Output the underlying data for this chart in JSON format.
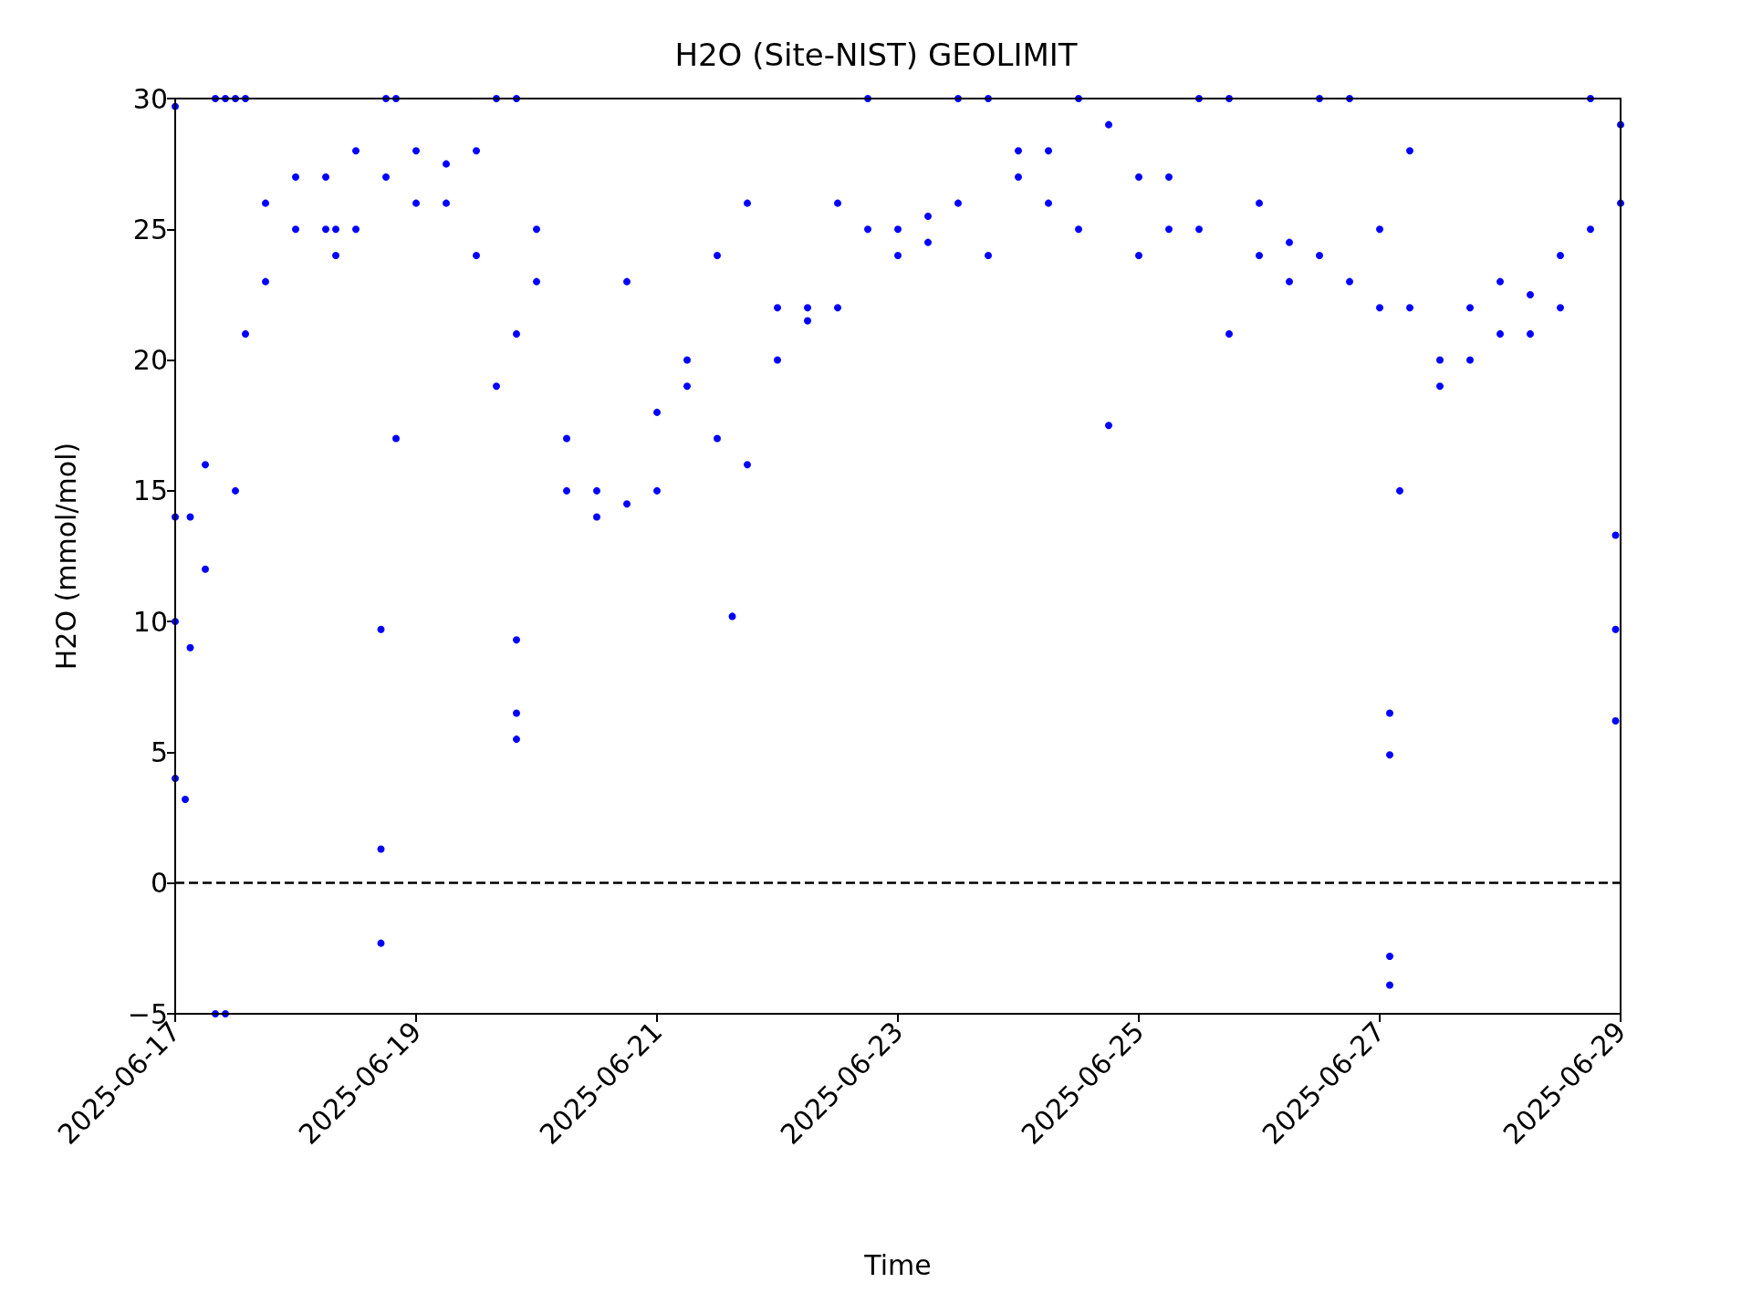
{
  "chart_data": {
    "type": "scatter",
    "title": "H2O (Site-NIST) GEOLIMIT",
    "xlabel": "Time",
    "ylabel": "H2O (mmol/mol)",
    "xlim": [
      "2025-06-17",
      "2025-06-29"
    ],
    "xticks": [
      "2025-06-17",
      "2025-06-19",
      "2025-06-21",
      "2025-06-23",
      "2025-06-25",
      "2025-06-27",
      "2025-06-29"
    ],
    "ylim": [
      -5,
      30
    ],
    "yticks": [
      {
        "value": -5,
        "label": "−5"
      },
      0,
      5,
      10,
      15,
      20,
      25,
      30
    ],
    "grid": false,
    "marker": "circle",
    "ref_lines": [
      {
        "axis": "y",
        "value": 0,
        "color": "#000000",
        "line_style": "dashed"
      }
    ],
    "series": [
      {
        "color": "#0000ff",
        "x": [
          "2025-06-17T00:00",
          "2025-06-17T00:00",
          "2025-06-17T00:00",
          "2025-06-17T00:00",
          "2025-06-17T02:00",
          "2025-06-17T03:00",
          "2025-06-17T03:00",
          "2025-06-17T06:00",
          "2025-06-17T06:00",
          "2025-06-17T08:00",
          "2025-06-17T08:00",
          "2025-06-17T10:00",
          "2025-06-17T10:00",
          "2025-06-17T12:00",
          "2025-06-17T12:00",
          "2025-06-17T14:00",
          "2025-06-17T14:00",
          "2025-06-17T18:00",
          "2025-06-17T18:00",
          "2025-06-18T00:00",
          "2025-06-18T00:00",
          "2025-06-18T06:00",
          "2025-06-18T06:00",
          "2025-06-18T08:00",
          "2025-06-18T08:00",
          "2025-06-18T12:00",
          "2025-06-18T12:00",
          "2025-06-18T17:00",
          "2025-06-18T17:00",
          "2025-06-18T17:00",
          "2025-06-18T18:00",
          "2025-06-18T18:00",
          "2025-06-18T20:00",
          "2025-06-18T20:00",
          "2025-06-19T00:00",
          "2025-06-19T00:00",
          "2025-06-19T06:00",
          "2025-06-19T06:00",
          "2025-06-19T12:00",
          "2025-06-19T12:00",
          "2025-06-19T16:00",
          "2025-06-19T16:00",
          "2025-06-19T20:00",
          "2025-06-19T20:00",
          "2025-06-19T20:00",
          "2025-06-19T20:00",
          "2025-06-19T20:00",
          "2025-06-20T00:00",
          "2025-06-20T00:00",
          "2025-06-20T06:00",
          "2025-06-20T06:00",
          "2025-06-20T12:00",
          "2025-06-20T12:00",
          "2025-06-20T18:00",
          "2025-06-20T18:00",
          "2025-06-21T00:00",
          "2025-06-21T00:00",
          "2025-06-21T06:00",
          "2025-06-21T06:00",
          "2025-06-21T12:00",
          "2025-06-21T12:00",
          "2025-06-21T15:00",
          "2025-06-21T18:00",
          "2025-06-21T18:00",
          "2025-06-22T00:00",
          "2025-06-22T00:00",
          "2025-06-22T06:00",
          "2025-06-22T06:00",
          "2025-06-22T12:00",
          "2025-06-22T12:00",
          "2025-06-22T18:00",
          "2025-06-22T18:00",
          "2025-06-23T00:00",
          "2025-06-23T00:00",
          "2025-06-23T06:00",
          "2025-06-23T06:00",
          "2025-06-23T12:00",
          "2025-06-23T12:00",
          "2025-06-23T18:00",
          "2025-06-23T18:00",
          "2025-06-24T00:00",
          "2025-06-24T00:00",
          "2025-06-24T06:00",
          "2025-06-24T06:00",
          "2025-06-24T12:00",
          "2025-06-24T12:00",
          "2025-06-24T18:00",
          "2025-06-24T18:00",
          "2025-06-25T00:00",
          "2025-06-25T00:00",
          "2025-06-25T06:00",
          "2025-06-25T06:00",
          "2025-06-25T12:00",
          "2025-06-25T12:00",
          "2025-06-25T18:00",
          "2025-06-25T18:00",
          "2025-06-26T00:00",
          "2025-06-26T00:00",
          "2025-06-26T06:00",
          "2025-06-26T06:00",
          "2025-06-26T12:00",
          "2025-06-26T12:00",
          "2025-06-26T18:00",
          "2025-06-26T18:00",
          "2025-06-27T00:00",
          "2025-06-27T00:00",
          "2025-06-27T02:00",
          "2025-06-27T02:00",
          "2025-06-27T02:00",
          "2025-06-27T02:00",
          "2025-06-27T04:00",
          "2025-06-27T06:00",
          "2025-06-27T06:00",
          "2025-06-27T12:00",
          "2025-06-27T12:00",
          "2025-06-27T18:00",
          "2025-06-27T18:00",
          "2025-06-28T00:00",
          "2025-06-28T00:00",
          "2025-06-28T06:00",
          "2025-06-28T06:00",
          "2025-06-28T12:00",
          "2025-06-28T12:00",
          "2025-06-28T18:00",
          "2025-06-28T18:00",
          "2025-06-28T23:00",
          "2025-06-28T23:00",
          "2025-06-28T23:00",
          "2025-06-29T00:00",
          "2025-06-29T00:00"
        ],
        "values": [
          10,
          14,
          4,
          29.7,
          3.2,
          9,
          14,
          12,
          16,
          -5,
          30,
          -5,
          30,
          15,
          30,
          21,
          30,
          23,
          26,
          25,
          27,
          25,
          27,
          24,
          25,
          25,
          28,
          1.3,
          -2.3,
          9.7,
          27,
          30,
          17,
          30,
          26,
          28,
          26,
          27.5,
          24,
          28,
          19,
          30,
          21,
          30,
          5.5,
          6.5,
          9.3,
          23,
          25,
          15,
          17,
          14,
          15,
          14.5,
          23,
          15,
          18,
          19,
          20,
          17,
          24,
          10.2,
          16,
          26,
          20,
          22,
          21.5,
          22,
          22,
          26,
          25,
          30,
          24,
          25,
          24.5,
          25.5,
          26,
          30,
          24,
          30,
          27,
          28,
          26,
          28,
          25,
          30,
          17.5,
          29,
          24,
          27,
          25,
          27,
          25,
          30,
          21,
          30,
          24,
          26,
          23,
          24.5,
          24,
          30,
          23,
          30,
          22,
          25,
          6.5,
          4.9,
          -2.8,
          -3.9,
          15,
          22,
          28,
          19,
          20,
          20,
          22,
          21,
          23,
          21,
          22.5,
          22,
          24,
          25,
          30,
          6.2,
          13.3,
          9.7,
          26,
          29
        ]
      }
    ]
  }
}
